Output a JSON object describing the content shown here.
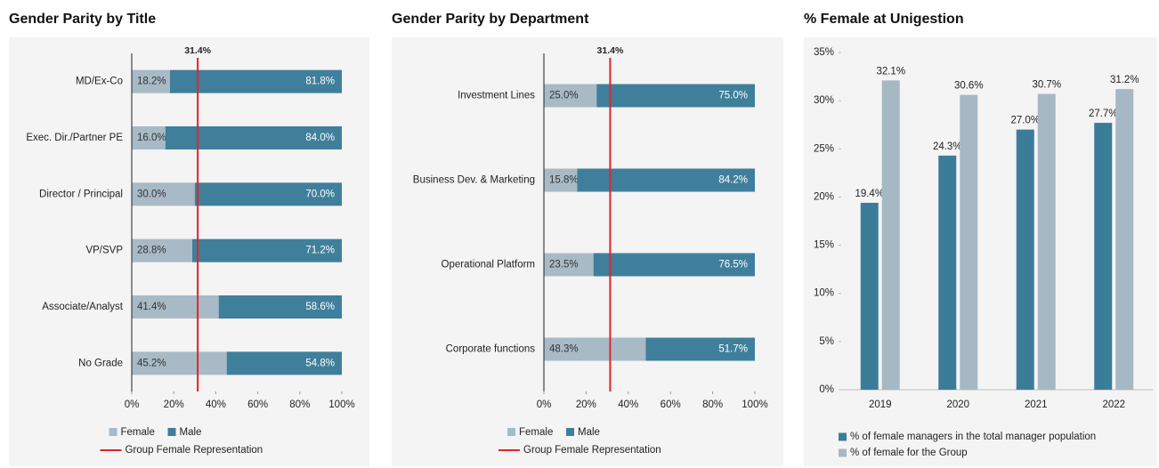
{
  "chart_data": [
    {
      "type": "hbar",
      "title": "Gender Parity by Title",
      "categories": [
        "MD/Ex-Co",
        "Exec. Dir./Partner PE",
        "Director / Principal",
        "VP/SVP",
        "Associate/Analyst",
        "No Grade"
      ],
      "series": [
        {
          "name": "Female",
          "color": "#a8bac6",
          "values": [
            18.2,
            16.0,
            30.0,
            28.8,
            41.4,
            45.2
          ],
          "value_labels": [
            "18.2%",
            "16.0%",
            "30.0%",
            "28.8%",
            "41.4%",
            "45.2%"
          ]
        },
        {
          "name": "Male",
          "color": "#3f7f9b",
          "values": [
            81.8,
            84.0,
            70.0,
            71.2,
            58.6,
            54.8
          ],
          "value_labels": [
            "81.8%",
            "84.0%",
            "70.0%",
            "71.2%",
            "58.6%",
            "54.8%"
          ]
        }
      ],
      "reference_line": {
        "name": "Group Female Representation",
        "value": 31.4,
        "label": "31.4%",
        "color": "#e3242b"
      },
      "xlim": [
        0,
        100
      ],
      "xticks": [
        {
          "value": 0,
          "label": "0%"
        },
        {
          "value": 20,
          "label": "20%"
        },
        {
          "value": 40,
          "label": "40%"
        },
        {
          "value": 60,
          "label": "60%"
        },
        {
          "value": 80,
          "label": "80%"
        },
        {
          "value": 100,
          "label": "100%"
        }
      ]
    },
    {
      "type": "hbar",
      "title": "Gender Parity by Department",
      "categories": [
        "Investment Lines",
        "Business Dev. & Marketing",
        "Operational Platform",
        "Corporate functions"
      ],
      "series": [
        {
          "name": "Female",
          "color": "#a8bac6",
          "values": [
            25.0,
            15.8,
            23.5,
            48.3
          ],
          "value_labels": [
            "25.0%",
            "15.8%",
            "23.5%",
            "48.3%"
          ]
        },
        {
          "name": "Male",
          "color": "#3f7f9b",
          "values": [
            75.0,
            84.2,
            76.5,
            51.7
          ],
          "value_labels": [
            "75.0%",
            "84.2%",
            "76.5%",
            "51.7%"
          ]
        }
      ],
      "reference_line": {
        "name": "Group Female Representation",
        "value": 31.4,
        "label": "31.4%",
        "color": "#e3242b"
      },
      "xlim": [
        0,
        100
      ],
      "xticks": [
        {
          "value": 0,
          "label": "0%"
        },
        {
          "value": 20,
          "label": "20%"
        },
        {
          "value": 40,
          "label": "40%"
        },
        {
          "value": 60,
          "label": "60%"
        },
        {
          "value": 80,
          "label": "80%"
        },
        {
          "value": 100,
          "label": "100%"
        }
      ]
    },
    {
      "type": "bar",
      "title": "% Female at Unigestion",
      "categories": [
        "2019",
        "2020",
        "2021",
        "2022"
      ],
      "series": [
        {
          "name": "% of female managers in the total manager population",
          "color": "#3b7d99",
          "values": [
            19.4,
            24.3,
            27.0,
            27.7
          ],
          "value_labels": [
            "19.4%",
            "24.3%",
            "27.0%",
            "27.7%"
          ]
        },
        {
          "name": "% of female for the Group",
          "color": "#a6b8c4",
          "values": [
            32.1,
            30.6,
            30.7,
            31.2
          ],
          "value_labels": [
            "32.1%",
            "30.6%",
            "30.7%",
            "31.2%"
          ]
        }
      ],
      "ylim": [
        0,
        35
      ],
      "yticks": [
        {
          "value": 0,
          "label": "0%"
        },
        {
          "value": 5,
          "label": "5%"
        },
        {
          "value": 10,
          "label": "10%"
        },
        {
          "value": 15,
          "label": "15%"
        },
        {
          "value": 20,
          "label": "20%"
        },
        {
          "value": 25,
          "label": "25%"
        },
        {
          "value": 30,
          "label": "30%"
        },
        {
          "value": 35,
          "label": "35%"
        }
      ]
    }
  ]
}
